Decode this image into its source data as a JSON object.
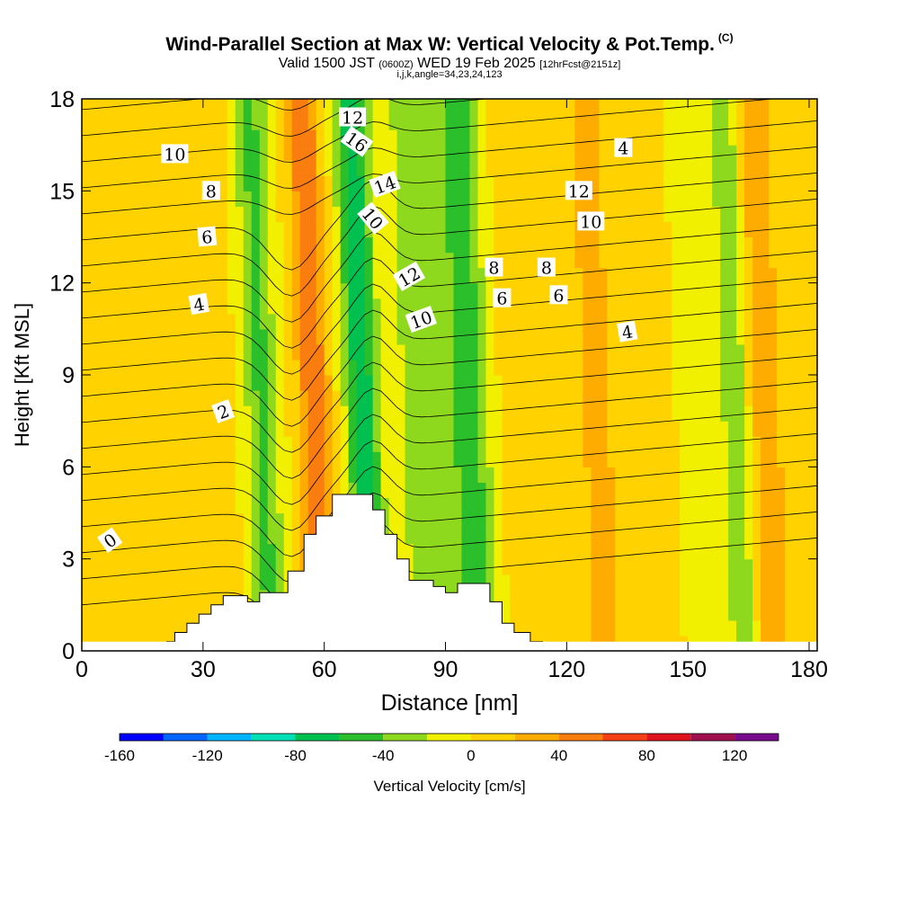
{
  "header": {
    "title": "Wind-Parallel Section at Max W: Vertical Velocity & Pot.Temp.",
    "title_badge": "(C)",
    "subtitle_part1": "Valid 1500 JST",
    "subtitle_utc": "(0600Z)",
    "subtitle_part2": "WED 19 Feb 2025",
    "subtitle_fcst": "[12hrFcst@2151z]",
    "indices": "i,j,k,angle=34,23,24,123"
  },
  "chart_data": {
    "type": "heatmap",
    "xlabel": "Distance [nm]",
    "ylabel": "Height [Kft MSL]",
    "xlim": [
      0,
      182
    ],
    "ylim": [
      0,
      18
    ],
    "xticks": [
      0,
      30,
      60,
      90,
      120,
      150,
      180
    ],
    "yticks": [
      0,
      3,
      6,
      9,
      12,
      15,
      18
    ],
    "background_color": "#f0f000",
    "w_bands": [
      {
        "x": 5,
        "value": 10,
        "half_width": 9
      },
      {
        "x": 28,
        "value": 10,
        "half_width": 10
      },
      {
        "x": 45,
        "value": -45,
        "half_width": 4
      },
      {
        "x": 58,
        "value": 55,
        "half_width": 4
      },
      {
        "x": 70,
        "value": -75,
        "half_width": 4
      },
      {
        "x": 84,
        "value": -35,
        "half_width": 5
      },
      {
        "x": 96,
        "value": -55,
        "half_width": 5
      },
      {
        "x": 110,
        "value": 20,
        "half_width": 5
      },
      {
        "x": 128,
        "value": 35,
        "half_width": 4
      },
      {
        "x": 162,
        "value": -40,
        "half_width": 3
      },
      {
        "x": 170,
        "value": 35,
        "half_width": 4
      }
    ],
    "terrain_kft": [
      [
        21,
        0.3
      ],
      [
        23,
        0.6
      ],
      [
        26,
        0.9
      ],
      [
        29,
        1.2
      ],
      [
        32,
        1.5
      ],
      [
        35,
        1.8
      ],
      [
        41,
        1.6
      ],
      [
        44,
        1.9
      ],
      [
        51,
        2.6
      ],
      [
        55,
        3.8
      ],
      [
        58,
        4.4
      ],
      [
        62,
        5.1
      ],
      [
        66,
        5.1
      ],
      [
        69,
        5.1
      ],
      [
        72,
        4.6
      ],
      [
        75,
        3.8
      ],
      [
        78,
        3.0
      ],
      [
        81,
        2.3
      ],
      [
        87,
        2.1
      ],
      [
        90,
        1.9
      ],
      [
        93,
        2.2
      ],
      [
        97,
        2.2
      ],
      [
        101,
        1.6
      ],
      [
        104,
        0.9
      ],
      [
        107,
        0.6
      ],
      [
        111,
        0.3
      ],
      [
        114,
        0.2
      ]
    ],
    "theta_contour_labels": [
      "0",
      "2",
      "4",
      "6",
      "8",
      "10",
      "12",
      "16",
      "10",
      "14",
      "12",
      "10",
      "8",
      "6",
      "4",
      "12",
      "10",
      "8",
      "6",
      "4"
    ],
    "colorbar": {
      "label": "Vertical Velocity [cm/s]",
      "ticks": [
        "-160",
        "-120",
        "-80",
        "-40",
        "0",
        "40",
        "80",
        "120"
      ],
      "tick_values": [
        -160,
        -120,
        -80,
        -40,
        0,
        40,
        80,
        120
      ],
      "levels": [
        -160,
        -140,
        -120,
        -100,
        -80,
        -60,
        -40,
        -20,
        0,
        20,
        40,
        60,
        80,
        100,
        120,
        140
      ],
      "colors": [
        "#0000ff",
        "#0066ff",
        "#00b4ff",
        "#00e0b4",
        "#00c050",
        "#2bbf2b",
        "#8ed81e",
        "#f0f000",
        "#ffd200",
        "#ffac00",
        "#fa7d10",
        "#f54016",
        "#e0141e",
        "#a0104e",
        "#780a8c"
      ]
    }
  }
}
